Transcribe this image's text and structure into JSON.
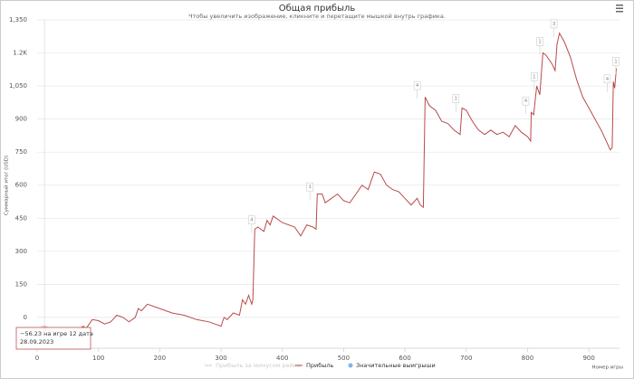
{
  "chart_data": {
    "type": "line",
    "title": "Общая прибыль",
    "subtitle": "Чтобы увеличить изображение, кликните и перетащите мышкой внутрь графика.",
    "x_label": "Номер игры",
    "y_label": "Суммарный итог (USD)",
    "xlim": [
      0,
      950
    ],
    "ylim": [
      -140,
      1350
    ],
    "xticks": [
      0,
      100,
      200,
      300,
      400,
      500,
      600,
      700,
      800,
      900
    ],
    "yticks": [
      0,
      150,
      300,
      450,
      600,
      750,
      900,
      {
        "value": 1050,
        "label": "1,050"
      },
      {
        "value": 1200,
        "label": "1.2K"
      },
      {
        "value": 1350,
        "label": "1,350"
      }
    ],
    "series": [
      {
        "name": "Прибыль за минусом рейка",
        "color": "#cccccc",
        "visible": false
      },
      {
        "name": "Прибыль",
        "color": "#b94a4a",
        "x": [
          12,
          20,
          40,
          60,
          75,
          80,
          90,
          100,
          110,
          120,
          130,
          140,
          150,
          160,
          165,
          170,
          180,
          200,
          220,
          240,
          260,
          280,
          290,
          300,
          305,
          310,
          320,
          330,
          335,
          340,
          345,
          350,
          352,
          355,
          360,
          370,
          375,
          380,
          385,
          400,
          420,
          430,
          440,
          450,
          455,
          457,
          465,
          470,
          480,
          490,
          500,
          510,
          520,
          530,
          540,
          550,
          560,
          570,
          580,
          590,
          600,
          610,
          620,
          625,
          630,
          633,
          640,
          650,
          660,
          670,
          680,
          690,
          693,
          700,
          710,
          720,
          730,
          740,
          750,
          760,
          770,
          780,
          790,
          800,
          805,
          806,
          810,
          815,
          820,
          825,
          830,
          840,
          845,
          848,
          852,
          860,
          870,
          880,
          890,
          900,
          910,
          920,
          930,
          935,
          938,
          940,
          942,
          945
        ],
        "values": [
          -56.23,
          -60,
          -80,
          -70,
          -40,
          -50,
          -10,
          -15,
          -30,
          -20,
          10,
          0,
          -20,
          0,
          40,
          30,
          60,
          40,
          20,
          10,
          -10,
          -20,
          -30,
          -40,
          0,
          -10,
          20,
          10,
          80,
          60,
          100,
          60,
          80,
          400,
          410,
          390,
          440,
          420,
          460,
          430,
          410,
          370,
          420,
          410,
          400,
          560,
          560,
          520,
          540,
          560,
          530,
          520,
          560,
          600,
          580,
          660,
          650,
          600,
          580,
          570,
          540,
          510,
          540,
          510,
          500,
          1000,
          960,
          940,
          890,
          880,
          850,
          830,
          950,
          940,
          890,
          850,
          830,
          850,
          830,
          840,
          820,
          870,
          840,
          820,
          800,
          930,
          920,
          1050,
          1010,
          1200,
          1190,
          1150,
          1120,
          1240,
          1290,
          1250,
          1180,
          1080,
          1000,
          950,
          900,
          850,
          790,
          760,
          770,
          1070,
          1040,
          1130
        ]
      },
      {
        "name": "Значительные выигрыши",
        "color": "#7cb5ec",
        "x": [
          350,
          445,
          620,
          683,
          797,
          811,
          820,
          843,
          930,
          944
        ],
        "values": [
          440,
          590,
          1050,
          990,
          980,
          1090,
          1250,
          1330,
          1080,
          1160
        ],
        "labels": [
          "4",
          "1",
          "4",
          "1",
          "4",
          "1",
          "1",
          "3",
          "4",
          "1"
        ]
      }
    ],
    "tooltip": [
      "−56.23 на игре 12 дата",
      "28.09.2023"
    ]
  }
}
